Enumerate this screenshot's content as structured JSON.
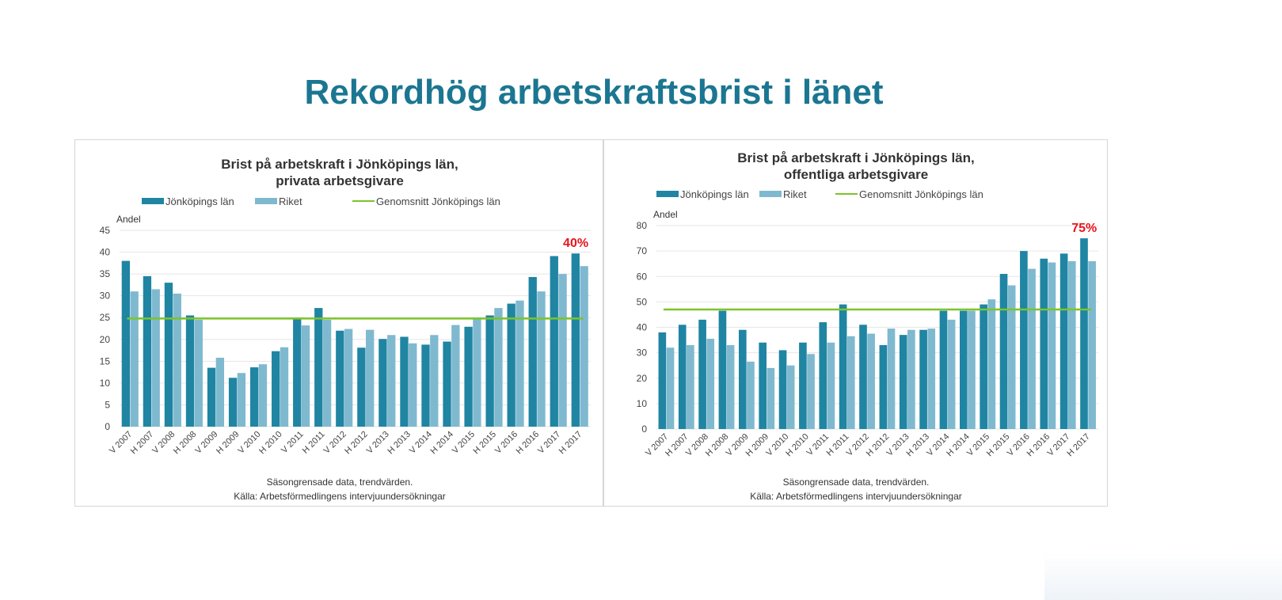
{
  "page": {
    "title": "Rekordhög arbetskraftsbrist i länet"
  },
  "colors": {
    "title": "#1b7691",
    "jonkoping": "#1f85a3",
    "riket": "#7fb9cf",
    "average": "#7cc42a",
    "annotation": "#e8141b"
  },
  "chart_data": [
    {
      "type": "bar",
      "title_line1": "Brist på arbetskraft i Jönköpings län,",
      "title_line2": "privata arbetsgivare",
      "ylabel": "Andel",
      "ylim": [
        0,
        45
      ],
      "yticks": [
        0,
        5,
        10,
        15,
        20,
        25,
        30,
        35,
        40,
        45
      ],
      "grid": true,
      "legend_position": "top",
      "categories": [
        "V 2007",
        "H 2007",
        "V 2008",
        "H 2008",
        "V 2009",
        "H 2009",
        "V 2010",
        "H 2010",
        "V 2011",
        "H 2011",
        "V 2012",
        "H 2012",
        "V 2013",
        "H 2013",
        "V 2014",
        "H 2014",
        "V 2015",
        "H 2015",
        "V 2016",
        "H 2016",
        "V 2017",
        "H 2017"
      ],
      "series": [
        {
          "name": "Jönköpings län",
          "type": "bar",
          "values": [
            38,
            34.5,
            33,
            25.5,
            13.5,
            11.2,
            13.6,
            17.3,
            24.8,
            27.2,
            22,
            18.1,
            20.1,
            20.6,
            18.8,
            19.5,
            22.9,
            25.5,
            28.2,
            34.3,
            39.1,
            39.7
          ]
        },
        {
          "name": "Riket",
          "type": "bar",
          "values": [
            31,
            31.5,
            30.5,
            24.5,
            15.8,
            12.3,
            14.3,
            18.2,
            23.2,
            24.5,
            22.4,
            22.2,
            21,
            19.1,
            21,
            23.3,
            25,
            27.2,
            28.9,
            31,
            35,
            36.8
          ]
        },
        {
          "name": "Genomsnitt Jönköpings län",
          "type": "line",
          "value": 24.8
        }
      ],
      "annotation": {
        "text": "40%",
        "category": "H 2017"
      },
      "footnote_line1": "Säsongrensade data, trendvärden.",
      "footnote_line2": "Källa: Arbetsförmedlingens intervjuundersökningar"
    },
    {
      "type": "bar",
      "title_line1": "Brist på arbetskraft i Jönköpings län,",
      "title_line2": "offentliga arbetsgivare",
      "ylabel": "Andel",
      "ylim": [
        0,
        80
      ],
      "yticks": [
        0,
        10,
        20,
        30,
        40,
        50,
        60,
        70,
        80
      ],
      "grid": true,
      "legend_position": "top",
      "categories": [
        "V 2007",
        "H 2007",
        "V 2008",
        "H 2008",
        "V 2009",
        "H 2009",
        "V 2010",
        "H 2010",
        "V 2011",
        "H 2011",
        "V 2012",
        "H 2012",
        "V 2013",
        "H 2013",
        "V 2014",
        "H 2014",
        "V 2015",
        "H 2015",
        "V 2016",
        "H 2016",
        "V 2017",
        "H 2017"
      ],
      "series": [
        {
          "name": "Jönköpings län",
          "type": "bar",
          "values": [
            38,
            41,
            43,
            46.5,
            39,
            34,
            31,
            34,
            42,
            49,
            41,
            33,
            37,
            39,
            46.5,
            46.5,
            49,
            61,
            70,
            67,
            69,
            75
          ]
        },
        {
          "name": "Riket",
          "type": "bar",
          "values": [
            32,
            33,
            35.5,
            33,
            26.5,
            24,
            25,
            29.5,
            34,
            36.5,
            37.5,
            39.5,
            39,
            39.5,
            43,
            46.5,
            51,
            56.5,
            63,
            65.5,
            66,
            66
          ]
        },
        {
          "name": "Genomsnitt Jönköpings län",
          "type": "line",
          "value": 47
        }
      ],
      "annotation": {
        "text": "75%",
        "category": "H 2017"
      },
      "footnote_line1": "Säsongrensade data, trendvärden.",
      "footnote_line2": "Källa: Arbetsförmedlingens intervjuundersökningar"
    }
  ]
}
